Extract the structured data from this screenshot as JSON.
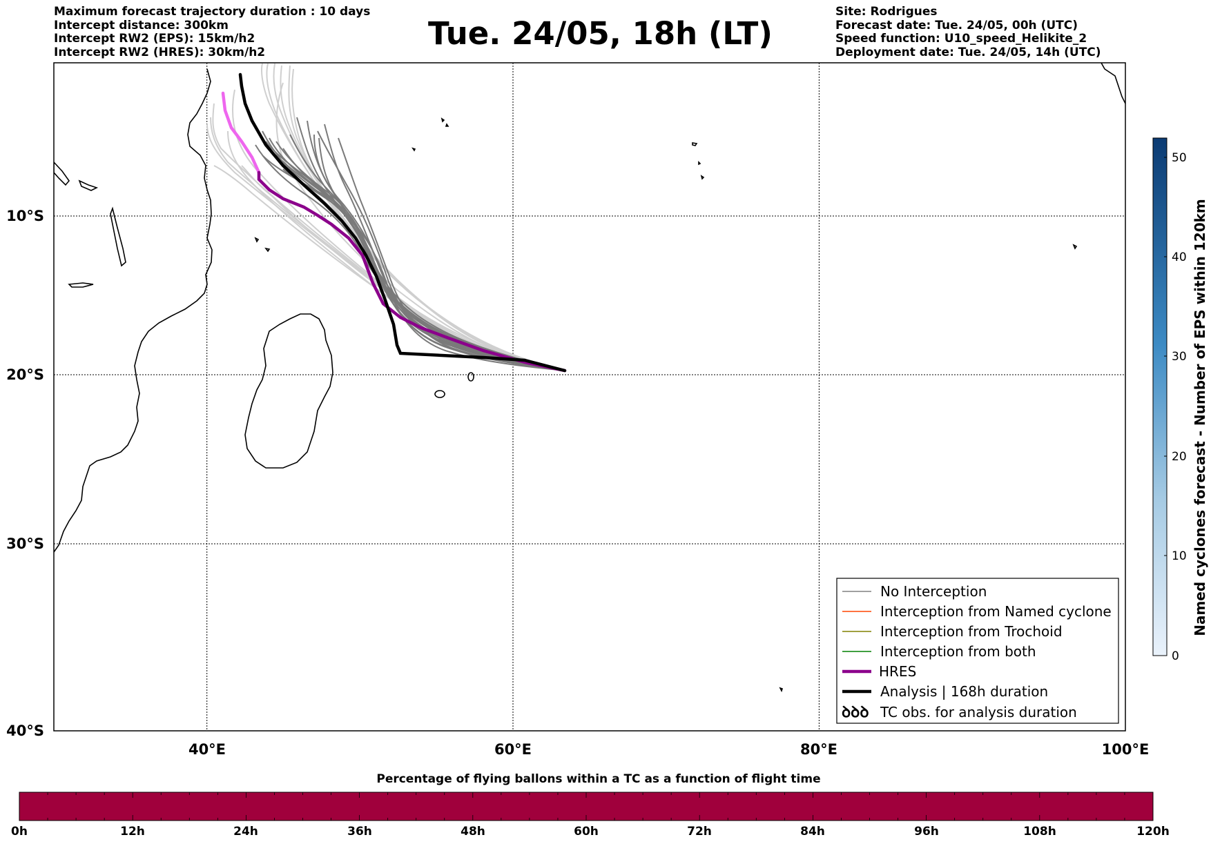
{
  "header": {
    "left_lines": [
      "Maximum forecast trajectory duration : 10 days",
      "Intercept distance: 300km",
      "Intercept RW2 (EPS):  15km/h2",
      "Intercept RW2 (HRES): 30km/h2"
    ],
    "title": "Tue. 24/05, 18h (LT)",
    "right_lines": [
      "Site: Rodrigues",
      "Forecast date: Tue. 24/05, 00h (UTC)",
      "Speed function: U10_speed_Helikite_2",
      "Deployment date: Tue. 24/05, 14h (UTC)"
    ]
  },
  "map": {
    "lon_range": [
      30,
      100
    ],
    "lat_range": [
      -40,
      0
    ],
    "lat_labels": [
      "10°S",
      "20°S",
      "30°S",
      "40°S"
    ],
    "lon_labels": [
      "40°E",
      "60°E",
      "80°E",
      "100°E"
    ]
  },
  "legend": {
    "items": [
      {
        "label": "No Interception",
        "color": "#808080"
      },
      {
        "label": "Interception from Named cyclone",
        "color": "#ff4500"
      },
      {
        "label": "Interception from Trochoid",
        "color": "#808000"
      },
      {
        "label": "Interception from both",
        "color": "#008000"
      },
      {
        "label": "HRES",
        "color": "#8b008b"
      },
      {
        "label": "Analysis | 168h duration",
        "color": "#000000"
      },
      {
        "label": "TC obs. for analysis duration",
        "color": "#000000",
        "icon": "cyclone-symbols-icon",
        "glyph": "ꝺꝺꝺ"
      }
    ]
  },
  "colorbar_right": {
    "label": "Named cyclones forecast - Number of EPS within 120km",
    "ticks": [
      "0",
      "10",
      "20",
      "30",
      "40",
      "50"
    ],
    "colors": {
      "low": "#eaf2fb",
      "high": "#0b3b73"
    }
  },
  "bottom_bar": {
    "title": "Percentage of flying ballons within a TC as a function of flight time",
    "ticks": [
      "0h",
      "12h",
      "24h",
      "36h",
      "48h",
      "60h",
      "72h",
      "84h",
      "96h",
      "108h",
      "120h"
    ],
    "color": "#a0003c"
  }
}
